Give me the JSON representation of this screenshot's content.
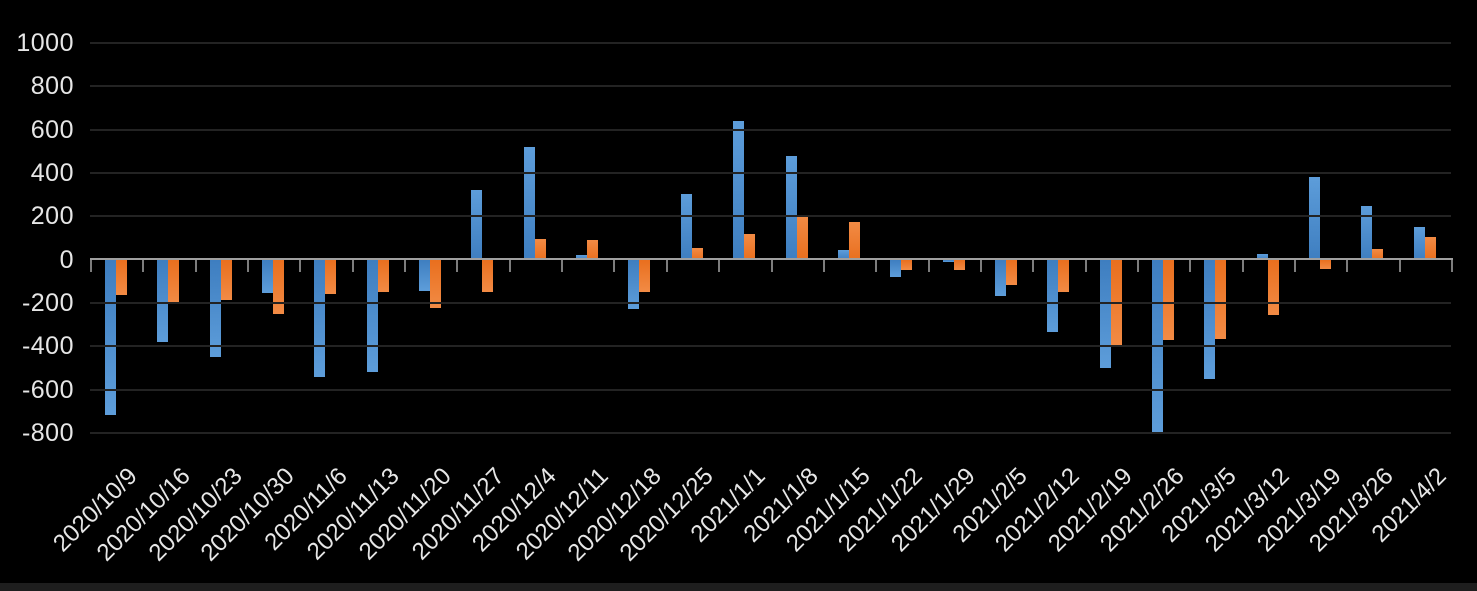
{
  "chart_data": {
    "type": "bar",
    "title": "",
    "xlabel": "",
    "ylabel": "",
    "categories": [
      "2020/10/9",
      "2020/10/16",
      "2020/10/23",
      "2020/10/30",
      "2020/11/6",
      "2020/11/13",
      "2020/11/20",
      "2020/11/27",
      "2020/12/4",
      "2020/12/11",
      "2020/12/18",
      "2020/12/25",
      "2021/1/1",
      "2021/1/8",
      "2021/1/15",
      "2021/1/22",
      "2021/1/29",
      "2021/2/5",
      "2021/2/12",
      "2021/2/19",
      "2021/2/26",
      "2021/3/5",
      "2021/3/12",
      "2021/3/19",
      "2021/3/26",
      "2021/4/2"
    ],
    "series": [
      {
        "name": "blue-series",
        "color_light": "#5d9dda",
        "color_dark": "#3e7ec0",
        "values": [
          -715,
          -380,
          -450,
          -155,
          -540,
          -520,
          -145,
          320,
          520,
          20,
          -230,
          305,
          640,
          480,
          45,
          -80,
          -10,
          -170,
          -335,
          -500,
          -800,
          -550,
          25,
          380,
          250,
          150
        ]
      },
      {
        "name": "orange-series",
        "color_light": "#f28b45",
        "color_dark": "#e96f1e",
        "values": [
          -165,
          -200,
          -185,
          -250,
          -160,
          -150,
          -225,
          -150,
          95,
          90,
          -150,
          55,
          120,
          205,
          175,
          -50,
          -50,
          -115,
          -150,
          -400,
          -370,
          -365,
          -255,
          -45,
          50,
          105
        ]
      }
    ],
    "ylim": [
      -800,
      1000
    ],
    "yticks": [
      1000,
      800,
      600,
      400,
      200,
      0,
      -200,
      -400,
      -600,
      -800
    ],
    "grid": "on",
    "legend_position": "none",
    "background_color": "#000000",
    "gridline_color": "#232323",
    "axis_color": "#a0a0a0",
    "tick_color": "#7d7d7d",
    "text_color": "#e6e6e6"
  }
}
